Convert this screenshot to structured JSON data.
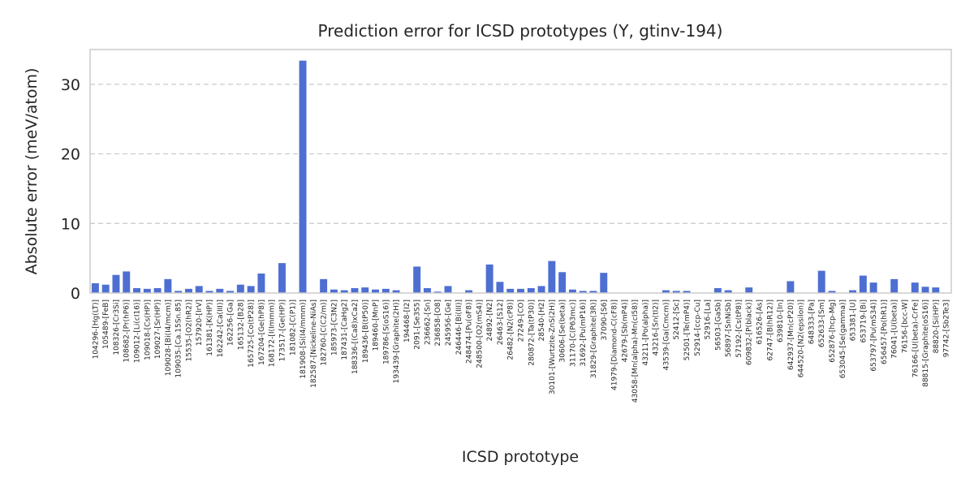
{
  "chart_data": {
    "type": "bar",
    "title": "Prediction error for ICSD prototypes (Y, gtinv-194)",
    "xlabel": "ICSD prototype",
    "ylabel": "Absolute error (meV/atom)",
    "ylim": [
      0,
      35
    ],
    "yticks": [
      0,
      10,
      20,
      30
    ],
    "grid": "y-dashed",
    "colors": {
      "bar": "#4e6fd2",
      "grid": "#c8c8c8",
      "frame": "#cccccc",
      "text": "#262626"
    },
    "categories": [
      "104296-[Hg(LT)]",
      "105489-[FeB]",
      "108326-[Cr3Si]",
      "108682-[Pr(hP6)]",
      "109012-[Li(cI16)]",
      "109018-[Cs(HP)]",
      "109027-[Sr(HP)]",
      "109028-[Bi(I4/mcm)]",
      "109035-[Ca.15Sn.85]",
      "15535-[O2(hR2)]",
      "157920-[IrV]",
      "161381-[K(HP)]",
      "162242-[Ca(III)]",
      "162256-[Ga]",
      "165132-[B28]",
      "165725-[Co(tP28)]",
      "167204-[Ge(hP8)]",
      "168172-[I(Immm)]",
      "173517-[Ge(HP)]",
      "181082-[C(P1)]",
      "181908-[Si(I4/mmm)]",
      "182587-[Nickeline-NiAs]",
      "182760-[C(C2/m)]",
      "185973-[C3N2]",
      "187431-[CaHg2]",
      "188336-[(Ca8)xCa2]",
      "189436-[B(tP50)]",
      "189460-[MnP]",
      "189786-[S(oS16)]",
      "193439-[Graphite(2H)]",
      "194468-[I2]",
      "2091-[Se3S5]",
      "236662-[Sn]",
      "236858-[O8]",
      "245956-[Ge]",
      "246446-[Bi(III)]",
      "248474-[Pu(oF8)]",
      "248500-[O2(mS4)]",
      "24892-[N2]",
      "26463-[S12]",
      "26482-[N2(cP8)]",
      "27249-[CO]",
      "280872-[Ta(tP30)]",
      "28540-[H2]",
      "30101-[Wurtzite-ZnS(2H)]",
      "30606-[Se(beta)]",
      "31170-[C(P63mc)]",
      "31692-[Pu(mP16)]",
      "31829-[Graphite(3R)]",
      "37090-[S6]",
      "41979-[Diamond-C(cF8)]",
      "42679-[Sb(mP4)]",
      "43058-[Mn(alpha)-Mn(cI58)]",
      "43211-[Po(alpha)]",
      "43216-[Sn(tI2)]",
      "43539-[Ga(Cmcm)]",
      "52412-[Sc]",
      "52501-[Te(mP4)]",
      "52914-[ccp-Cu]",
      "52916-[La]",
      "56503-[GaSb]",
      "56897-[SnNiSb]",
      "57192-[Cs(tP8)]",
      "609832-[P(black)]",
      "616526-[As]",
      "62747-[B(hR12)]",
      "639810-[In]",
      "642937-[Mn(cP20)]",
      "644520-[N2(epsilon)]",
      "648333-[Pa]",
      "652633-[Sm]",
      "652876-[hcp-Mg]",
      "653045-[Se(gamma)]",
      "653381-[U]",
      "653719-[Bi]",
      "653797-[Pu(mS34)]",
      "656457-[Po(hR1)]",
      "76041-[U(beta)]",
      "76156-[bcc-W]",
      "76166-[U(beta)-CrFe]",
      "88815-[Graphite(oS16)]",
      "88820-[Si(HP)]",
      "97742-[Sb2Te3]"
    ],
    "values": [
      1.4,
      1.2,
      2.6,
      3.1,
      0.7,
      0.6,
      0.7,
      2.0,
      0.3,
      0.6,
      1.0,
      0.3,
      0.6,
      0.3,
      1.2,
      1.0,
      2.8,
      0.0,
      4.3,
      0.0,
      33.4,
      0.0,
      2.0,
      0.5,
      0.4,
      0.7,
      0.8,
      0.5,
      0.6,
      0.4,
      0.0,
      3.8,
      0.7,
      0.2,
      1.0,
      0.0,
      0.4,
      0.0,
      4.1,
      1.6,
      0.6,
      0.6,
      0.7,
      1.0,
      4.6,
      3.0,
      0.5,
      0.3,
      0.3,
      2.9,
      0.0,
      0.0,
      0.0,
      0.0,
      0.0,
      0.4,
      0.3,
      0.3,
      0.0,
      0.0,
      0.7,
      0.4,
      0.0,
      0.8,
      0.0,
      0.0,
      0.0,
      1.7,
      0.0,
      0.0,
      3.2,
      0.3,
      0.0,
      0.4,
      2.5,
      1.5,
      0.0,
      2.0,
      0.0,
      1.5,
      0.9,
      0.8,
      0.0
    ]
  }
}
